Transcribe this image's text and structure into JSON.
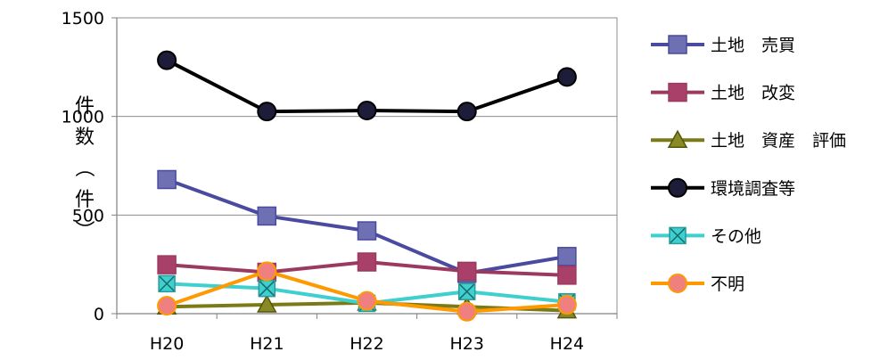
{
  "chart_data": {
    "type": "line",
    "categories": [
      "H20",
      "H21",
      "H22",
      "H23",
      "H24"
    ],
    "ylim": [
      0,
      1500
    ],
    "yticks": [
      0,
      500,
      1000,
      1500
    ],
    "ylabel": "件数（件）",
    "grid": true,
    "legend_position": "right",
    "series": [
      {
        "name": "土地　売買",
        "color": "#4a4aa0",
        "marker_fill": "#6f6fb4",
        "marker": "square",
        "values": [
          680,
          495,
          420,
          205,
          290
        ]
      },
      {
        "name": "土地　改変",
        "color": "#9b3a5f",
        "marker_fill": "#a8406a",
        "marker": "square",
        "values": [
          248,
          210,
          262,
          215,
          195
        ]
      },
      {
        "name": "土地　資産　評価",
        "color": "#7a7a16",
        "marker_fill": "#8a8a24",
        "marker": "triangle",
        "values": [
          35,
          45,
          55,
          35,
          15
        ]
      },
      {
        "name": "環境調査等",
        "color": "#000000",
        "marker_fill": "#1d1d3a",
        "marker": "circle",
        "values": [
          1285,
          1025,
          1030,
          1025,
          1200
        ]
      },
      {
        "name": "その他",
        "color": "#3ecfcf",
        "marker_fill": "#3ecfcf",
        "marker": "xsquare",
        "values": [
          152,
          128,
          52,
          112,
          60
        ]
      },
      {
        "name": "不明",
        "color": "#ff9900",
        "marker_fill": "#f08080",
        "marker": "circle",
        "values": [
          40,
          215,
          65,
          10,
          45
        ]
      }
    ]
  }
}
